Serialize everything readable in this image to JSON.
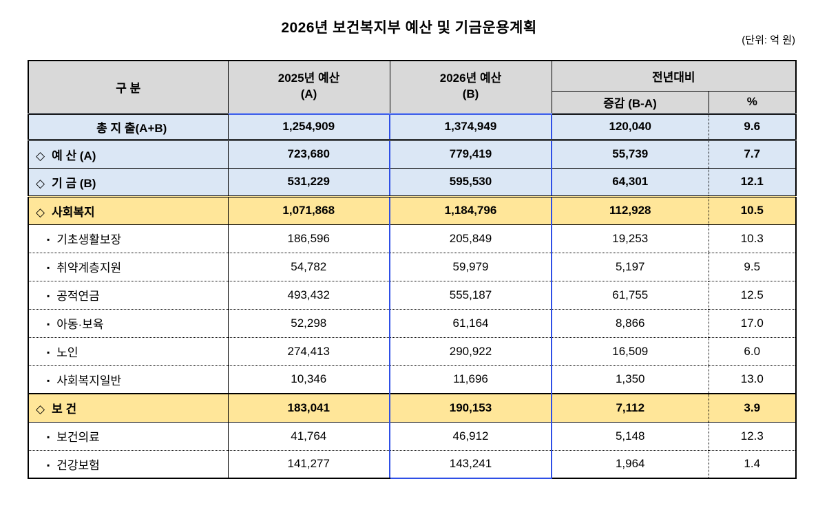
{
  "page": {
    "title": "2026년 보건복지부 예산 및 기금운용계획",
    "unit_label": "(단위: 억 원)"
  },
  "colors": {
    "header_bg": "#D9D9D9",
    "summary_row_bg": "#DBE7F5",
    "section_row_bg": "#FFE699",
    "highlight_column_border": "#2E4FE6"
  },
  "table": {
    "header": {
      "category": "구 분",
      "budget_2025": {
        "line1": "2025년 예산",
        "line2": "(A)"
      },
      "budget_2026": {
        "line1": "2026년 예산",
        "line2": "(B)"
      },
      "yoy": {
        "group": "전년대비",
        "diff": "증감 (B-A)",
        "pct": "%"
      }
    },
    "rows": [
      {
        "marker": "",
        "label": "총 지 출(A+B)",
        "v2025": "1,254,909",
        "v2026": "1,374,949",
        "diff": "120,040",
        "pct": "9.6"
      },
      {
        "marker": "◇",
        "label": "예 산 (A)",
        "v2025": "723,680",
        "v2026": "779,419",
        "diff": "55,739",
        "pct": "7.7"
      },
      {
        "marker": "◇",
        "label": "기 금 (B)",
        "v2025": "531,229",
        "v2026": "595,530",
        "diff": "64,301",
        "pct": "12.1"
      },
      {
        "marker": "◇",
        "label": "사회복지",
        "v2025": "1,071,868",
        "v2026": "1,184,796",
        "diff": "112,928",
        "pct": "10.5"
      },
      {
        "marker": "▪",
        "label": "기초생활보장",
        "v2025": "186,596",
        "v2026": "205,849",
        "diff": "19,253",
        "pct": "10.3"
      },
      {
        "marker": "▪",
        "label": "취약계층지원",
        "v2025": "54,782",
        "v2026": "59,979",
        "diff": "5,197",
        "pct": "9.5"
      },
      {
        "marker": "▪",
        "label": "공적연금",
        "v2025": "493,432",
        "v2026": "555,187",
        "diff": "61,755",
        "pct": "12.5"
      },
      {
        "marker": "▪",
        "label": "아동·보육",
        "v2025": "52,298",
        "v2026": "61,164",
        "diff": "8,866",
        "pct": "17.0"
      },
      {
        "marker": "▪",
        "label": "노인",
        "v2025": "274,413",
        "v2026": "290,922",
        "diff": "16,509",
        "pct": "6.0"
      },
      {
        "marker": "▪",
        "label": "사회복지일반",
        "v2025": "10,346",
        "v2026": "11,696",
        "diff": "1,350",
        "pct": "13.0"
      },
      {
        "marker": "◇",
        "label": "보 건",
        "v2025": "183,041",
        "v2026": "190,153",
        "diff": "7,112",
        "pct": "3.9"
      },
      {
        "marker": "▪",
        "label": "보건의료",
        "v2025": "41,764",
        "v2026": "46,912",
        "diff": "5,148",
        "pct": "12.3"
      },
      {
        "marker": "▪",
        "label": "건강보험",
        "v2025": "141,277",
        "v2026": "143,241",
        "diff": "1,964",
        "pct": "1.4"
      }
    ]
  }
}
